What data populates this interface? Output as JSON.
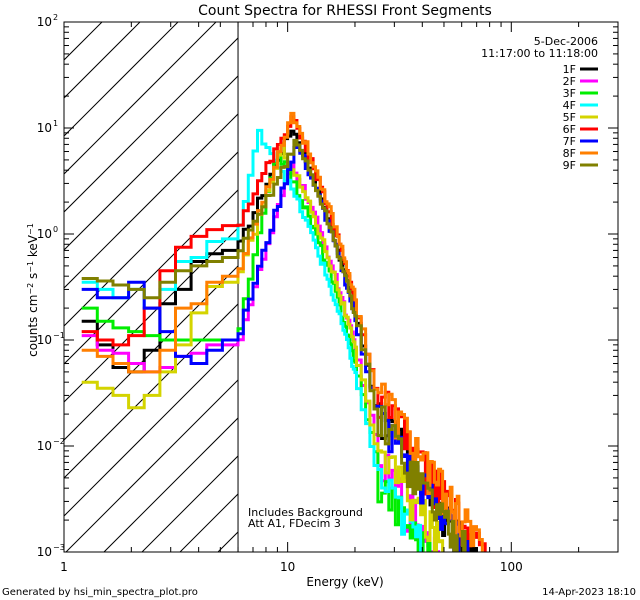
{
  "chart_data": {
    "type": "line",
    "title": "Count Spectra for RHESSI Front Segments",
    "xlabel": "Energy (keV)",
    "ylabel": "counts cm-2 s-1 keV-1",
    "xscale": "log",
    "yscale": "log",
    "xlim": [
      1,
      300
    ],
    "ylim": [
      0.001,
      100
    ],
    "x_tick_labels": [
      "1",
      "10",
      "100"
    ],
    "y_tick_exponents": [
      "-3",
      "-2",
      "-1",
      "0",
      "1",
      "2"
    ],
    "date": "5-Dec-2006",
    "time_range": "11:17:00 to 11:18:00",
    "annotation_line1": "Includes Background",
    "annotation_line2": "Att A1, FDecim  3",
    "footer_left": "Generated by hsi_min_spectra_plot.pro",
    "footer_right": "14-Apr-2023 18:10",
    "attenuated_region_max_kev": 6,
    "series": [
      {
        "name": "1F",
        "color": "#000000",
        "low": [
          0.15,
          0.09,
          0.055,
          0.05,
          0.08,
          0.22,
          0.3,
          0.55,
          0.65,
          0.7
        ],
        "peak_kev": 10.5,
        "peak": 10,
        "tail_scale": 1.0
      },
      {
        "name": "2F",
        "color": "#ff00ff",
        "low": [
          0.11,
          0.08,
          0.075,
          0.06,
          0.05,
          0.055,
          0.07,
          0.075,
          0.09,
          0.09
        ],
        "peak_kev": 10.5,
        "peak": 4.6,
        "tail_scale": 0.75
      },
      {
        "name": "3F",
        "color": "#00ee00",
        "low": [
          0.2,
          0.15,
          0.13,
          0.12,
          0.11,
          0.1,
          0.1,
          0.1,
          0.1,
          0.1
        ],
        "peak_kev": 9.0,
        "peak": 6.2,
        "tail_scale": 0.7
      },
      {
        "name": "4F",
        "color": "#00ffff",
        "low": [
          0.35,
          0.3,
          0.25,
          0.3,
          0.2,
          0.3,
          0.55,
          0.6,
          0.85,
          0.9
        ],
        "peak_kev": 7.5,
        "peak": 9,
        "tail_scale": 0.9
      },
      {
        "name": "5F",
        "color": "#d4d400",
        "low": [
          0.04,
          0.035,
          0.03,
          0.023,
          0.03,
          0.05,
          0.09,
          0.18,
          0.32,
          0.35
        ],
        "peak_kev": 9.5,
        "peak": 6.6,
        "tail_scale": 1.05
      },
      {
        "name": "6F",
        "color": "#ff0000",
        "low": [
          0.12,
          0.1,
          0.09,
          0.11,
          0.2,
          0.45,
          0.75,
          0.95,
          1.1,
          1.2
        ],
        "peak_kev": 10.5,
        "peak": 12.5,
        "tail_scale": 1.1
      },
      {
        "name": "7F",
        "color": "#0000ff",
        "low": [
          0.3,
          0.25,
          0.25,
          0.35,
          0.2,
          0.12,
          0.07,
          0.06,
          0.08,
          0.1
        ],
        "peak_kev": 11.0,
        "peak": 7.2,
        "tail_scale": 1.0
      },
      {
        "name": "8F",
        "color": "#ff7f00",
        "low": [
          0.08,
          0.07,
          0.06,
          0.05,
          0.05,
          0.08,
          0.2,
          0.22,
          0.35,
          0.4
        ],
        "peak_kev": 10.5,
        "peak": 13.5,
        "tail_scale": 1.15
      },
      {
        "name": "9F",
        "color": "#808000",
        "low": [
          0.38,
          0.36,
          0.33,
          0.3,
          0.25,
          0.35,
          0.45,
          0.5,
          0.55,
          0.6
        ],
        "peak_kev": 11.0,
        "peak": 7.5,
        "tail_scale": 0.95
      }
    ]
  }
}
